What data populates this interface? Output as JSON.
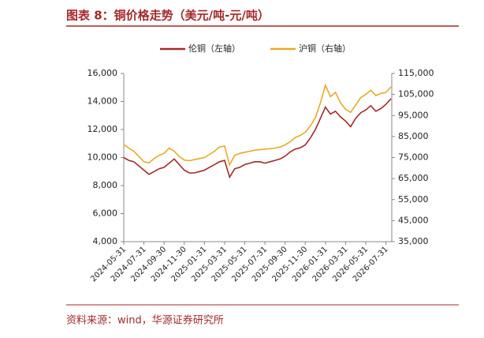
{
  "header": {
    "title": "图表 8：铜价格走势（美元/吨-元/吨）"
  },
  "chart_data": {
    "type": "line",
    "categories": [
      "2024-05-31",
      null,
      null,
      null,
      "2024-07-31",
      null,
      null,
      null,
      "2024-09-30",
      null,
      null,
      null,
      "2024-11-30",
      null,
      null,
      null,
      "2025-01-31",
      null,
      null,
      null,
      "2025-03-31",
      null,
      null,
      null,
      "2025-05-31",
      null,
      null,
      null,
      "2025-07-31",
      null,
      null,
      null,
      "2025-09-30",
      null,
      null,
      null,
      "2025-11-30",
      null,
      null,
      null,
      "2026-01-31",
      null,
      null,
      null,
      "2026-03-31",
      null,
      null,
      null,
      "2026-05-31",
      null,
      null,
      null,
      "2026-07-31",
      null
    ],
    "series": [
      {
        "name": "伦铜（左轴）",
        "color": "#a3292b",
        "axis": "y",
        "values": [
          10000,
          9800,
          9700,
          9400,
          9100,
          8800,
          9000,
          9200,
          9300,
          9600,
          9900,
          9500,
          9100,
          8900,
          8900,
          9000,
          9100,
          9300,
          9500,
          9700,
          9800,
          8600,
          9200,
          9300,
          9500,
          9600,
          9700,
          9700,
          9600,
          9700,
          9800,
          9900,
          10100,
          10400,
          10600,
          10700,
          10900,
          11400,
          12000,
          12800,
          13600,
          13100,
          13300,
          12900,
          12600,
          12200,
          12800,
          13200,
          13400,
          13700,
          13300,
          13500,
          13800,
          14200
        ]
      },
      {
        "name": "沪铜（右轴）",
        "color": "#e8a927",
        "axis": "y2",
        "values": [
          81200,
          79500,
          78000,
          75500,
          73000,
          72500,
          74500,
          76000,
          77000,
          79500,
          78000,
          75500,
          73800,
          73500,
          74000,
          74500,
          75000,
          76500,
          78000,
          80000,
          80500,
          71500,
          76000,
          77000,
          77500,
          78000,
          78500,
          78800,
          79000,
          79200,
          79500,
          80000,
          81000,
          82500,
          84500,
          85500,
          87000,
          90000,
          94000,
          101000,
          109400,
          104000,
          106000,
          101000,
          98000,
          96500,
          100000,
          103500,
          105000,
          107000,
          104500,
          105500,
          106000,
          108600
        ]
      }
    ],
    "ylim": [
      4000,
      16000
    ],
    "yticks": [
      {
        "value": 4000,
        "label": "4,000"
      },
      {
        "value": 6000,
        "label": "6,000"
      },
      {
        "value": 8000,
        "label": "8,000"
      },
      {
        "value": 10000,
        "label": "10,000"
      },
      {
        "value": 12000,
        "label": "12,000"
      },
      {
        "value": 14000,
        "label": "14,000"
      },
      {
        "value": 16000,
        "label": "16,000"
      }
    ],
    "y2lim": [
      35000,
      115000
    ],
    "y2ticks": [
      {
        "value": 35000,
        "label": "35,000"
      },
      {
        "value": 45000,
        "label": "45,000"
      },
      {
        "value": 55000,
        "label": "55,000"
      },
      {
        "value": 65000,
        "label": "65,000"
      },
      {
        "value": 75000,
        "label": "75,000"
      },
      {
        "value": 85000,
        "label": "85,000"
      },
      {
        "value": 95000,
        "label": "95,000"
      },
      {
        "value": 105000,
        "label": "105,000"
      },
      {
        "value": 115000,
        "label": "115,000"
      }
    ],
    "legend": "top"
  },
  "footer": {
    "source": "资料来源：wind，华源证券研究所"
  }
}
